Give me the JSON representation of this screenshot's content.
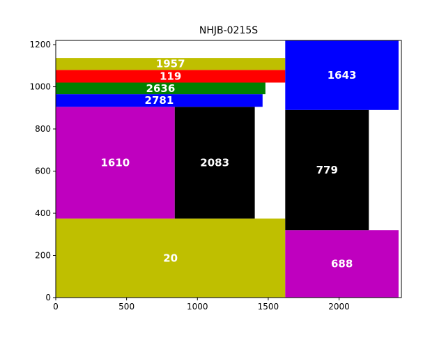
{
  "chart_data": {
    "type": "treemap",
    "title": "NHJB-0215S",
    "xlabel": "",
    "ylabel": "",
    "xlim": [
      0,
      2440
    ],
    "ylim": [
      0,
      1220
    ],
    "grid": false,
    "xticks": [
      0,
      500,
      1000,
      1500,
      2000
    ],
    "yticks": [
      0,
      200,
      400,
      600,
      800,
      1000,
      1200
    ],
    "rects": [
      {
        "label": "20",
        "x": 0,
        "y": 0,
        "w": 1620,
        "h": 375,
        "color": "#bfbf00"
      },
      {
        "label": "1610",
        "x": 0,
        "y": 375,
        "w": 840,
        "h": 530,
        "color": "#bf00bf"
      },
      {
        "label": "2083",
        "x": 840,
        "y": 375,
        "w": 565,
        "h": 530,
        "color": "#000000"
      },
      {
        "label": "2781",
        "x": 0,
        "y": 905,
        "w": 1460,
        "h": 60,
        "color": "#0000ff"
      },
      {
        "label": "2636",
        "x": 0,
        "y": 965,
        "w": 1480,
        "h": 55,
        "color": "#008000"
      },
      {
        "label": "119",
        "x": 0,
        "y": 1020,
        "w": 1620,
        "h": 60,
        "color": "#ff0000"
      },
      {
        "label": "1957",
        "x": 0,
        "y": 1080,
        "w": 1620,
        "h": 57,
        "color": "#bfbf00"
      },
      {
        "label": "688",
        "x": 1620,
        "y": 0,
        "w": 800,
        "h": 320,
        "color": "#bf00bf"
      },
      {
        "label": "779",
        "x": 1620,
        "y": 320,
        "w": 590,
        "h": 570,
        "color": "#000000"
      },
      {
        "label": "1643",
        "x": 1620,
        "y": 890,
        "w": 800,
        "h": 330,
        "color": "#0000ff"
      }
    ]
  }
}
